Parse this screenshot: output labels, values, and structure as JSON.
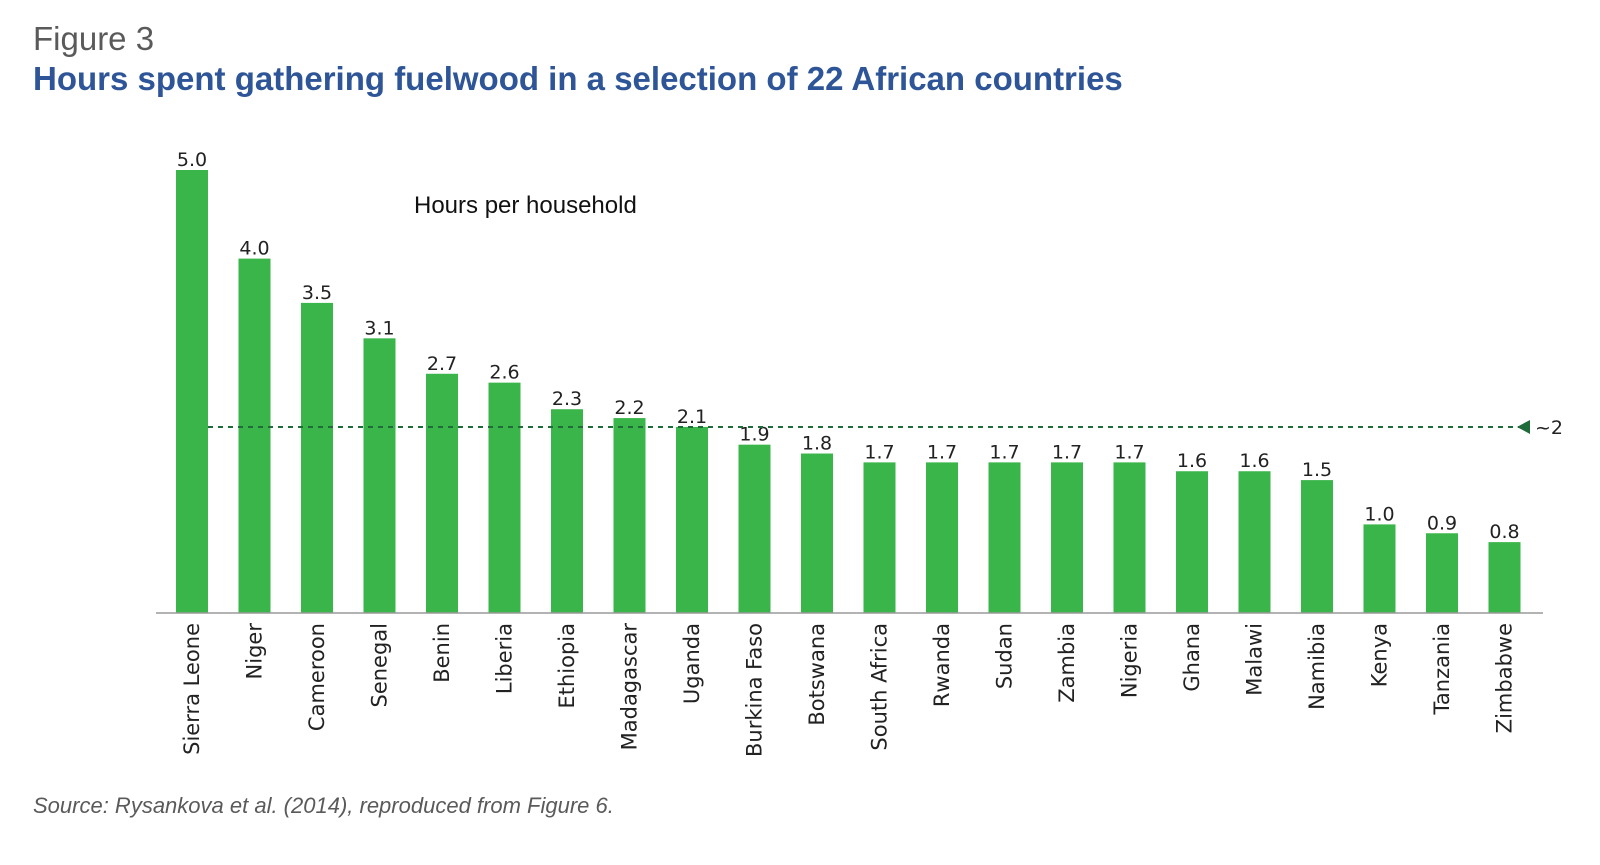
{
  "figure": {
    "label": "Figure 3",
    "title": "Hours spent gathering fuelwood in a selection of 22 African countries",
    "source": "Source: Rysankova et al. (2014), reproduced from Figure 6."
  },
  "colors": {
    "bar": "#3ab54a",
    "reference_line": "#1f6b3a",
    "title": "#2e5597",
    "axis": "#9a9a9a"
  },
  "chart_data": {
    "type": "bar",
    "ylabel": "Hours per household",
    "xlabel": "",
    "ylim": [
      0,
      5
    ],
    "grid": false,
    "legend": "none",
    "categories": [
      "Sierra Leone",
      "Niger",
      "Cameroon",
      "Senegal",
      "Benin",
      "Liberia",
      "Ethiopia",
      "Madagascar",
      "Uganda",
      "Burkina Faso",
      "Botswana",
      "South Africa",
      "Rwanda",
      "Sudan",
      "Zambia",
      "Nigeria",
      "Ghana",
      "Malawi",
      "Namibia",
      "Kenya",
      "Tanzania",
      "Zimbabwe"
    ],
    "values": [
      5.0,
      4.0,
      3.5,
      3.1,
      2.7,
      2.6,
      2.3,
      2.2,
      2.1,
      1.9,
      1.8,
      1.7,
      1.7,
      1.7,
      1.7,
      1.7,
      1.6,
      1.6,
      1.5,
      1.0,
      0.9,
      0.8
    ],
    "value_labels": [
      "5.0",
      "4.0",
      "3.5",
      "3.1",
      "2.7",
      "2.6",
      "2.3",
      "2.2",
      "2.1",
      "1.9",
      "1.8",
      "1.7",
      "1.7",
      "1.7",
      "1.7",
      "1.7",
      "1.6",
      "1.6",
      "1.5",
      "1.0",
      "0.9",
      "0.8"
    ],
    "reference_line": {
      "value": 2.1,
      "label": "~2",
      "style": "dashed"
    }
  }
}
